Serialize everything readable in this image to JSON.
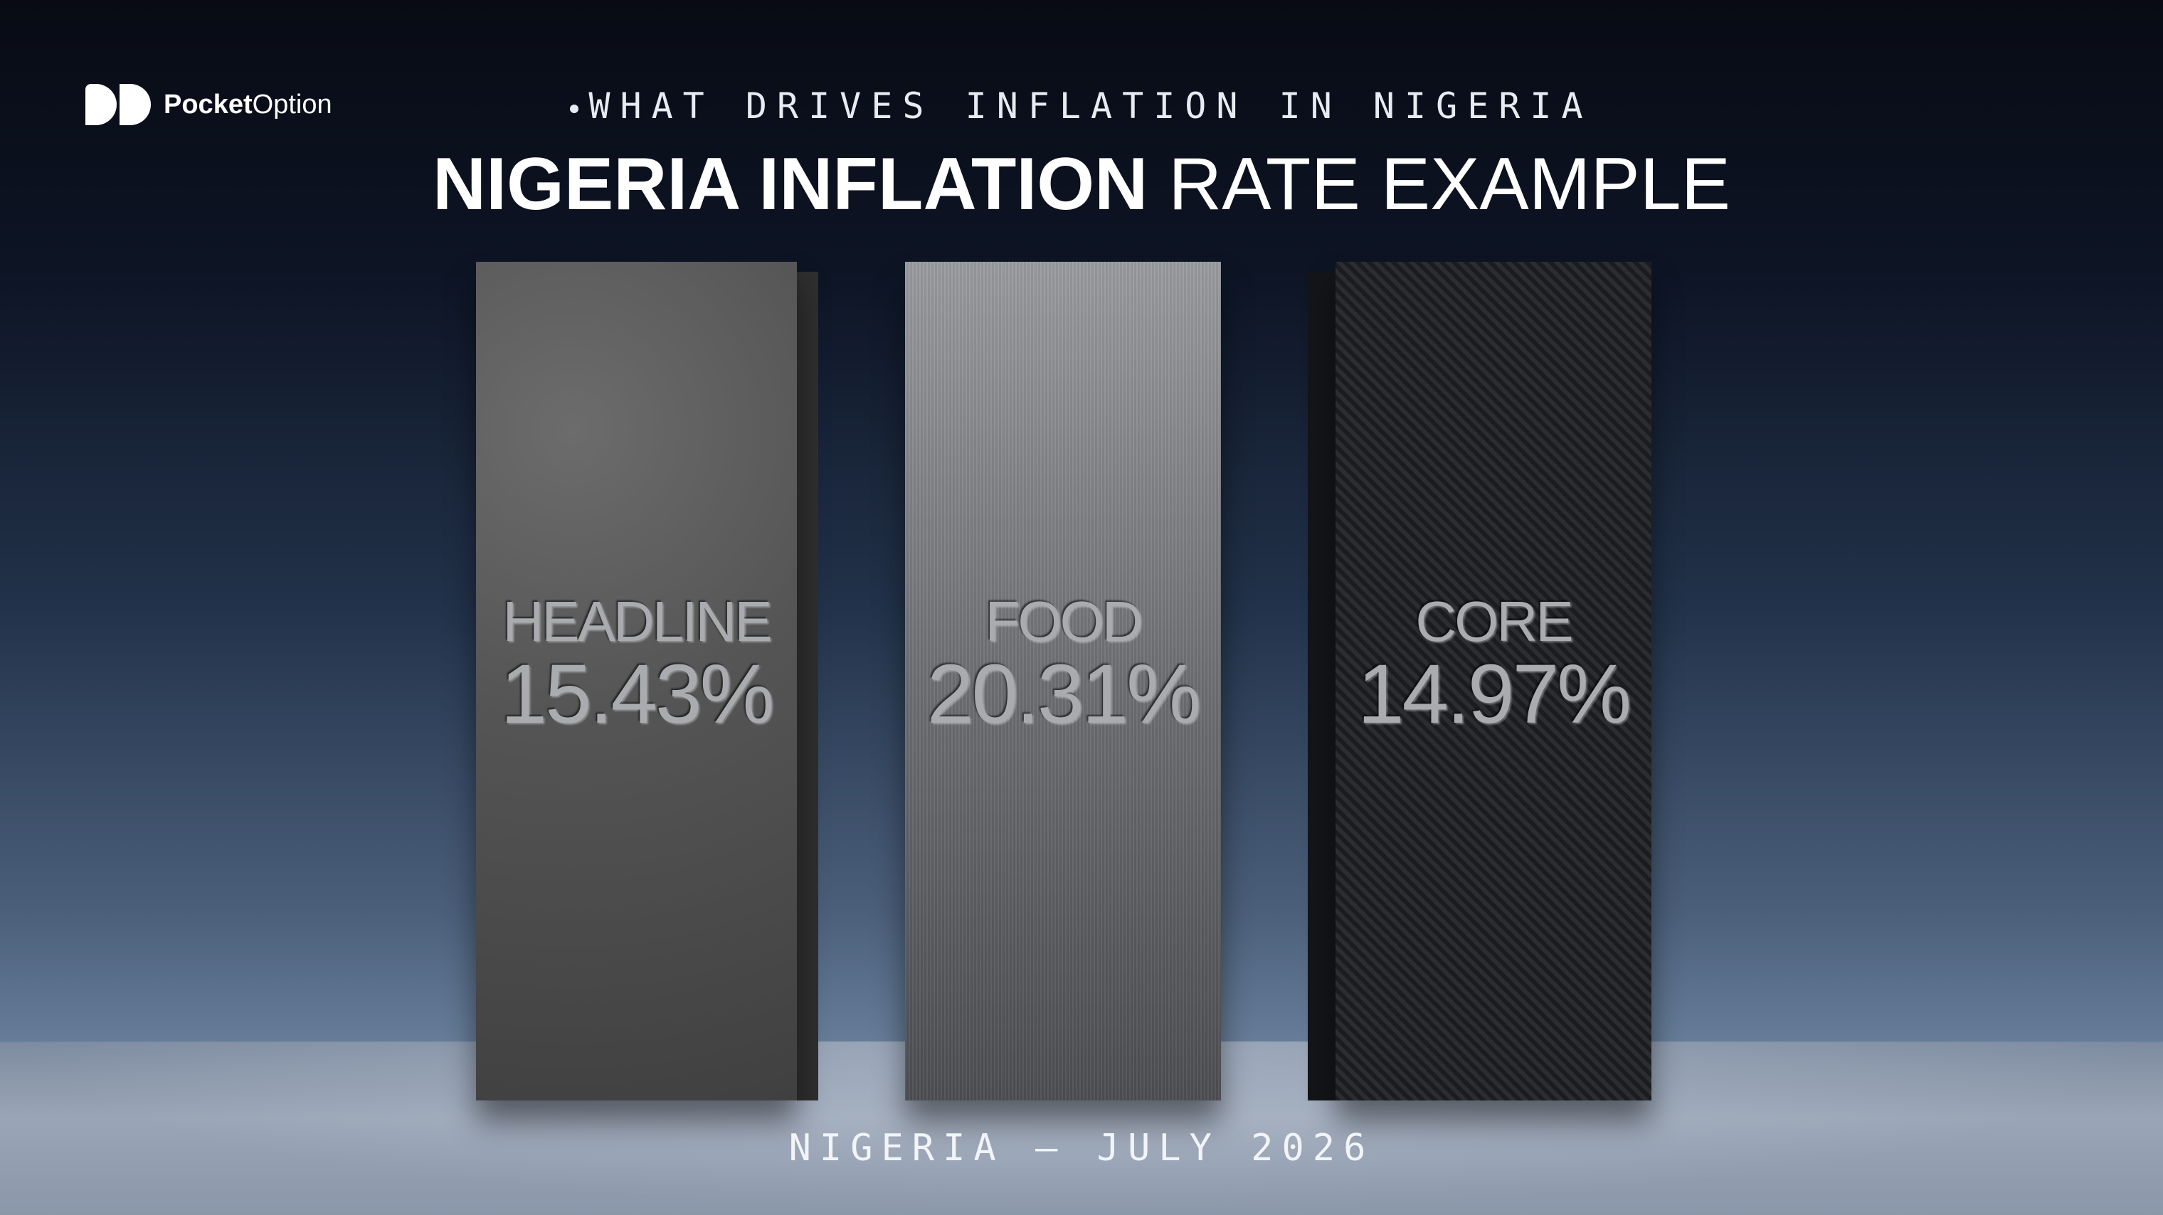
{
  "logo": {
    "bold": "Pocket",
    "regular": "Option"
  },
  "subtitle": "WHAT DRIVES INFLATION IN NIGERIA",
  "title": {
    "bold": "NIGERIA INFLATION",
    "regular": "RATE EXAMPLE"
  },
  "pillars": [
    {
      "label": "HEADLINE",
      "value": "15.43%"
    },
    {
      "label": "FOOD",
      "value": "20.31%"
    },
    {
      "label": "CORE",
      "value": "14.97%"
    }
  ],
  "footer": "NIGERIA — JULY 2026"
}
